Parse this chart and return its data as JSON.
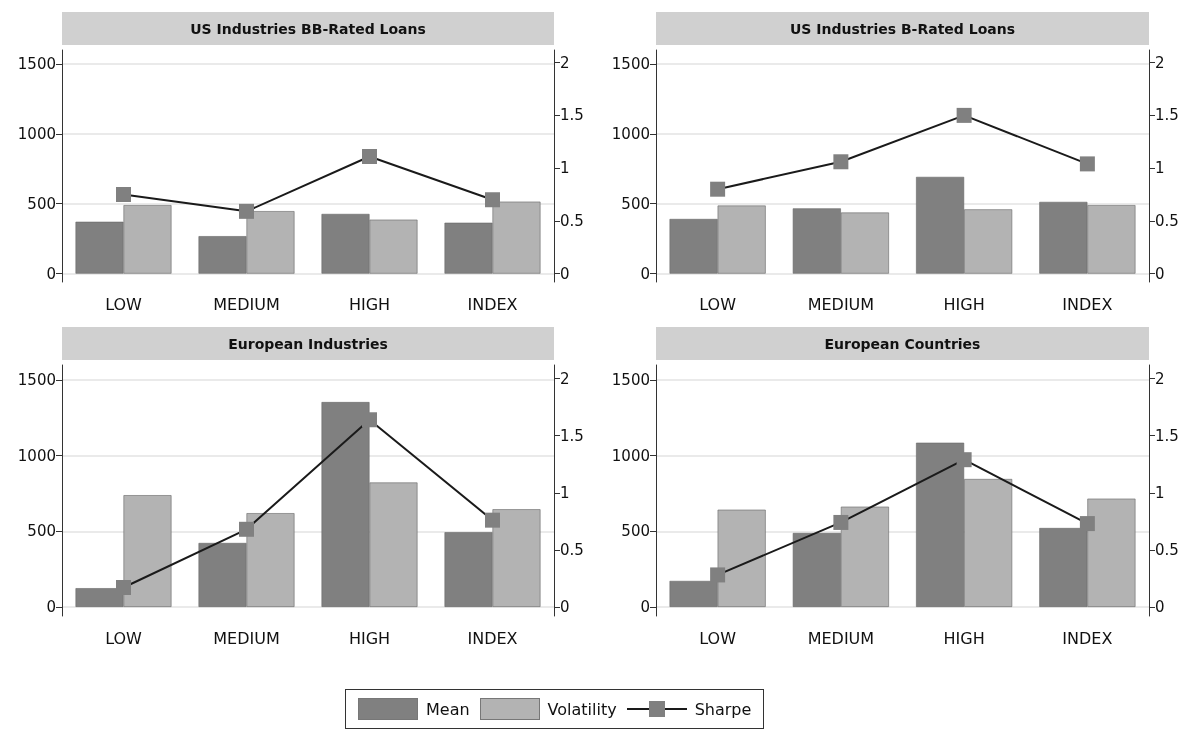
{
  "chart_data": [
    {
      "type": "bar",
      "title": "US Industries BB-Rated Loans",
      "categories": [
        "LOW",
        "MEDIUM",
        "HIGH",
        "INDEX"
      ],
      "ylim": [
        -60,
        1600
      ],
      "yticks": [
        0,
        500,
        1000,
        1500
      ],
      "y2lim": [
        -0.08,
        2.12
      ],
      "y2ticks": [
        0,
        0.5,
        1,
        1.5,
        2
      ],
      "grid": "y",
      "marker": "square",
      "legend": "bottom",
      "series": [
        {
          "name": "Mean",
          "color": "#808080",
          "values": [
            371,
            268,
            427,
            364
          ]
        },
        {
          "name": "Volatility",
          "color": "#b3b3b3",
          "values": [
            490,
            447,
            386,
            515
          ]
        },
        {
          "name": "Sharpe",
          "type": "line",
          "axis": "y2",
          "color": "#1a1a1a",
          "values": [
            0.75,
            0.59,
            1.11,
            0.7
          ]
        }
      ]
    },
    {
      "type": "bar",
      "title": "US Industries B-Rated Loans",
      "categories": [
        "LOW",
        "MEDIUM",
        "HIGH",
        "INDEX"
      ],
      "ylim": [
        -60,
        1600
      ],
      "yticks": [
        0,
        500,
        1000,
        1500
      ],
      "y2lim": [
        -0.08,
        2.12
      ],
      "y2ticks": [
        0,
        0.5,
        1,
        1.5,
        2
      ],
      "grid": "y",
      "marker": "square",
      "series": [
        {
          "color": "#808080",
          "values": [
            391,
            467,
            692,
            513
          ]
        },
        {
          "color": "#b3b3b3",
          "values": [
            487,
            437,
            460,
            490
          ]
        },
        {
          "type": "line",
          "axis": "y2",
          "color": "#1a1a1a",
          "values": [
            0.8,
            1.06,
            1.5,
            1.04
          ]
        }
      ]
    },
    {
      "type": "bar",
      "title": "European Industries",
      "categories": [
        "LOW",
        "MEDIUM",
        "HIGH",
        "INDEX"
      ],
      "ylim": [
        -60,
        1600
      ],
      "yticks": [
        0,
        500,
        1000,
        1500
      ],
      "y2lim": [
        -0.08,
        2.12
      ],
      "y2ticks": [
        0,
        0.5,
        1,
        1.5,
        2
      ],
      "grid": "y",
      "marker": "square",
      "series": [
        {
          "color": "#808080",
          "values": [
            124,
            423,
            1355,
            494
          ]
        },
        {
          "color": "#b3b3b3",
          "values": [
            739,
            620,
            823,
            646
          ]
        },
        {
          "type": "line",
          "axis": "y2",
          "color": "#1a1a1a",
          "values": [
            0.17,
            0.68,
            1.64,
            0.76
          ]
        }
      ]
    },
    {
      "type": "bar",
      "title": "European Countries",
      "categories": [
        "LOW",
        "MEDIUM",
        "HIGH",
        "INDEX"
      ],
      "ylim": [
        -60,
        1600
      ],
      "yticks": [
        0,
        500,
        1000,
        1500
      ],
      "y2lim": [
        -0.08,
        2.12
      ],
      "y2ticks": [
        0,
        0.5,
        1,
        1.5,
        2
      ],
      "grid": "y",
      "marker": "square",
      "series": [
        {
          "color": "#808080",
          "values": [
            172,
            489,
            1086,
            522
          ]
        },
        {
          "color": "#b3b3b3",
          "values": [
            643,
            663,
            846,
            716
          ]
        },
        {
          "type": "line",
          "axis": "y2",
          "color": "#1a1a1a",
          "values": [
            0.28,
            0.74,
            1.29,
            0.73
          ]
        }
      ]
    }
  ]
}
